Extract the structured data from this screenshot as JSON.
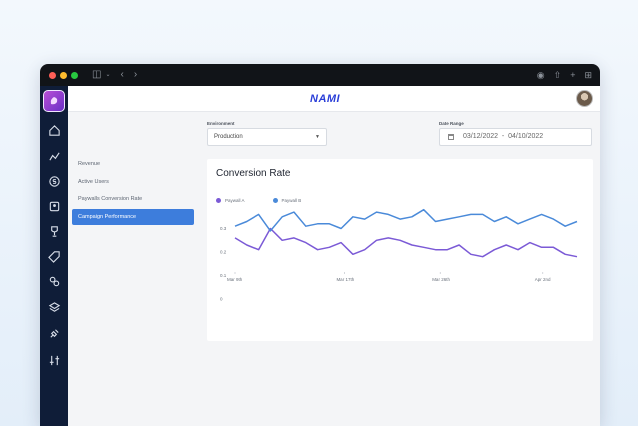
{
  "titlebar": {
    "dots": [
      "#ff5f57",
      "#febc2e",
      "#28c840"
    ],
    "icons": [
      "sidebar-toggle-icon",
      "chevron-down-icon",
      "back-arrow-icon",
      "forward-arrow-icon",
      "shield-icon",
      "share-icon",
      "plus-icon",
      "grid-icon"
    ]
  },
  "topbar": {
    "brand": "NAMI"
  },
  "sidebar": {
    "items": [
      "home-icon",
      "chart-icon",
      "dollar-icon",
      "paywall-icon",
      "trophy-icon",
      "tag-icon",
      "users-icon",
      "layers-icon",
      "plug-icon",
      "sliders-icon"
    ]
  },
  "subnav": {
    "items": [
      {
        "label": "Revenue",
        "active": false
      },
      {
        "label": "Active Users",
        "active": false
      },
      {
        "label": "Paywalls Conversion Rate",
        "active": false
      },
      {
        "label": "Campaign Performance",
        "active": true
      }
    ]
  },
  "filters": {
    "environment_label": "Environment",
    "environment_value": "Production",
    "date_label": "Date Range",
    "date_value": "03/12/2022  -  04/10/2022"
  },
  "colors": {
    "accent": "#3d7ddc",
    "sidebar": "#0f1d38",
    "series_a": "#7b5ad6",
    "series_b": "#4a8ad9"
  },
  "chart_data": {
    "type": "line",
    "title": "Conversion Rate",
    "xlabel": "",
    "ylabel": "",
    "x_ticks": [
      "Mar 9th",
      "Mar 17th",
      "Mar 26th",
      "Apr 2nd"
    ],
    "y_ticks": [
      "0",
      "0.1",
      "0.2",
      "0.3"
    ],
    "ylim": [
      0,
      0.4
    ],
    "legend_position": "top-left",
    "grid": false,
    "series": [
      {
        "name": "Paywall A",
        "color": "#7b5ad6",
        "values": [
          0.26,
          0.23,
          0.21,
          0.3,
          0.25,
          0.26,
          0.24,
          0.21,
          0.22,
          0.24,
          0.19,
          0.21,
          0.25,
          0.26,
          0.25,
          0.23,
          0.22,
          0.21,
          0.21,
          0.23,
          0.19,
          0.18,
          0.21,
          0.23,
          0.21,
          0.24,
          0.22,
          0.22,
          0.19,
          0.18
        ]
      },
      {
        "name": "Paywall B",
        "color": "#4a8ad9",
        "values": [
          0.31,
          0.33,
          0.36,
          0.29,
          0.35,
          0.37,
          0.31,
          0.32,
          0.32,
          0.3,
          0.35,
          0.34,
          0.37,
          0.36,
          0.34,
          0.35,
          0.38,
          0.33,
          0.34,
          0.35,
          0.36,
          0.36,
          0.33,
          0.35,
          0.32,
          0.34,
          0.36,
          0.34,
          0.31,
          0.33
        ]
      }
    ]
  }
}
